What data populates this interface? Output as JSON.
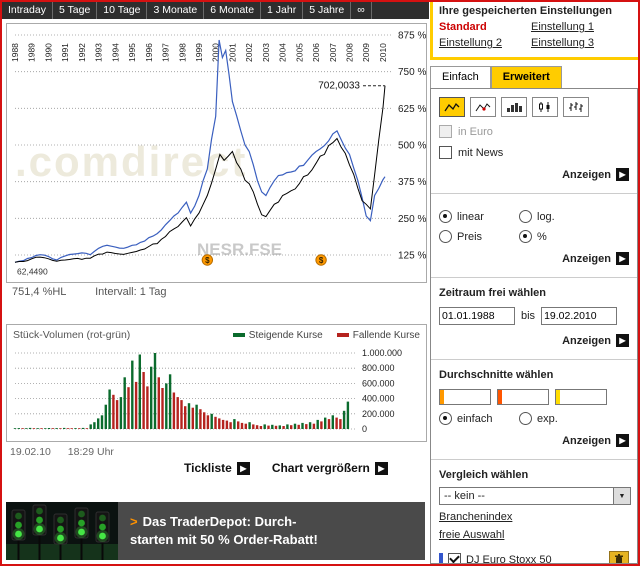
{
  "icons": {
    "arrow_right": "▶",
    "dropdown_arrow": "▼",
    "dollar": "$"
  },
  "period_tabs": {
    "items": [
      "Intraday",
      "5 Tage",
      "10 Tage",
      "3 Monate",
      "6 Monate",
      "1 Jahr",
      "5 Jahre",
      "∞"
    ]
  },
  "saved_settings": {
    "title": "Ihre gespeicherten Einstellungen",
    "standard": "Standard",
    "links": [
      "Einstellung 1",
      "Einstellung 2",
      "Einstellung 3"
    ]
  },
  "mode_tabs": {
    "simple": "Einfach",
    "advanced": "Erweitert"
  },
  "settings_panel": {
    "in_euro": "in Euro",
    "with_news": "mit News",
    "show_label": "Anzeigen",
    "scale": {
      "linear": "linear",
      "log": "log.",
      "price": "Preis",
      "percent": "%"
    },
    "timeframe": {
      "label": "Zeitraum frei wählen",
      "from": "01.01.1988",
      "between": "bis",
      "to": "19.02.2010"
    },
    "averages": {
      "label": "Durchschnitte wählen",
      "simple": "einfach",
      "exponential": "exp.",
      "colors": [
        "#ff9900",
        "#ff5500",
        "#ffdd00"
      ]
    },
    "compare": {
      "label": "Vergleich wählen",
      "selected": "-- kein --",
      "links": [
        "Branchenindex",
        "freie Auswahl"
      ],
      "active_item": "DJ Euro Stoxx 50",
      "active_color": "#3355cc"
    }
  },
  "chart": {
    "watermark": ".comdirect",
    "symbol_watermark": "NESR.FSE",
    "last_price_label": "702,0033",
    "start_price_label": "62,4490",
    "y_ticks": [
      "125 %",
      "250 %",
      "375 %",
      "500 %",
      "625 %",
      "750 %",
      "875 %"
    ],
    "footer": {
      "hl": "751,4 %HL",
      "interval": "Intervall: 1 Tag"
    }
  },
  "volume": {
    "title": "Stück-Volumen (rot-grün)",
    "legend": [
      {
        "label": "Steigende Kurse",
        "color": "#0b6b2d"
      },
      {
        "label": "Fallende Kurse",
        "color": "#b5231f"
      }
    ],
    "y_ticks": [
      "0",
      "200.000",
      "400.000",
      "600.000",
      "800.000",
      "1.000.000"
    ]
  },
  "status": {
    "date": "19.02.10",
    "time": "18:29 Uhr"
  },
  "actions": {
    "ticklist": "Tickliste",
    "enlarge": "Chart vergrößern"
  },
  "ad": {
    "arrow": ">",
    "line1": "Das TraderDepot: Durch-",
    "line2": "starten mit 50 % Order-Rabatt!"
  },
  "chart_data": [
    {
      "type": "line",
      "title": "Kursentwicklung 1988–2010 in Prozent",
      "x_range": [
        1988,
        2010.6
      ],
      "y_ticks_pct": [
        125,
        250,
        375,
        500,
        625,
        750,
        875
      ],
      "year_labels": [
        1988,
        1989,
        1990,
        1991,
        1992,
        1993,
        1994,
        1995,
        1996,
        1997,
        1998,
        1999,
        2000,
        2001,
        2002,
        2003,
        2004,
        2005,
        2006,
        2007,
        2008,
        2009,
        2010
      ],
      "last_value": 702.0033,
      "dollar_marker_years": [
        1999.5,
        2006.3
      ],
      "series": [
        {
          "name": "NESR.FSE",
          "color": "#000000",
          "points": [
            [
              1988,
              100
            ],
            [
              1988.5,
              103
            ],
            [
              1989,
              112
            ],
            [
              1989.5,
              118
            ],
            [
              1990,
              112
            ],
            [
              1990.5,
              104
            ],
            [
              1991,
              108
            ],
            [
              1991.5,
              112
            ],
            [
              1992,
              110
            ],
            [
              1992.5,
              114
            ],
            [
              1993,
              128
            ],
            [
              1993.5,
              135
            ],
            [
              1994,
              130
            ],
            [
              1994.5,
              127
            ],
            [
              1995,
              134
            ],
            [
              1995.5,
              142
            ],
            [
              1996,
              154
            ],
            [
              1996.5,
              164
            ],
            [
              1997,
              188
            ],
            [
              1997.5,
              214
            ],
            [
              1998,
              238
            ],
            [
              1998.25,
              252
            ],
            [
              1998.5,
              224
            ],
            [
              1999,
              268
            ],
            [
              1999.5,
              328
            ],
            [
              2000,
              418
            ],
            [
              2000.25,
              468
            ],
            [
              2000.5,
              448
            ],
            [
              2000.75,
              462
            ],
            [
              2001,
              478
            ],
            [
              2001.25,
              440
            ],
            [
              2001.5,
              418
            ],
            [
              2001.75,
              380
            ],
            [
              2002,
              368
            ],
            [
              2002.5,
              298
            ],
            [
              2002.75,
              262
            ],
            [
              2003,
              256
            ],
            [
              2003.5,
              298
            ],
            [
              2004,
              328
            ],
            [
              2004.5,
              344
            ],
            [
              2005,
              368
            ],
            [
              2005.5,
              398
            ],
            [
              2006,
              438
            ],
            [
              2006.5,
              468
            ],
            [
              2007,
              508
            ],
            [
              2007.25,
              522
            ],
            [
              2007.5,
              492
            ],
            [
              2008,
              432
            ],
            [
              2008.5,
              352
            ],
            [
              2008.75,
              310
            ],
            [
              2009,
              298
            ],
            [
              2009.25,
              282
            ],
            [
              2009.5,
              398
            ],
            [
              2009.75,
              518
            ],
            [
              2010,
              628
            ],
            [
              2010.12,
              702
            ]
          ]
        },
        {
          "name": "DJ Euro Stoxx 50",
          "color": "#3a5fbf",
          "points": [
            [
              1988,
              100
            ],
            [
              1988.5,
              106
            ],
            [
              1989,
              116
            ],
            [
              1989.5,
              126
            ],
            [
              1990,
              120
            ],
            [
              1990.5,
              108
            ],
            [
              1991,
              122
            ],
            [
              1991.5,
              128
            ],
            [
              1992,
              132
            ],
            [
              1992.5,
              126
            ],
            [
              1993,
              148
            ],
            [
              1993.5,
              158
            ],
            [
              1994,
              152
            ],
            [
              1994.5,
              148
            ],
            [
              1995,
              158
            ],
            [
              1995.5,
              168
            ],
            [
              1996,
              184
            ],
            [
              1996.5,
              198
            ],
            [
              1997,
              228
            ],
            [
              1997.5,
              258
            ],
            [
              1998,
              288
            ],
            [
              1998.25,
              305
            ],
            [
              1998.5,
              268
            ],
            [
              1999,
              328
            ],
            [
              1999.5,
              418
            ],
            [
              2000,
              598
            ],
            [
              2000.2,
              858
            ],
            [
              2000.4,
              798
            ],
            [
              2000.6,
              822
            ],
            [
              2001,
              648
            ],
            [
              2001.25,
              600
            ],
            [
              2001.5,
              548
            ],
            [
              2001.75,
              500
            ],
            [
              2002,
              478
            ],
            [
              2002.5,
              378
            ],
            [
              2002.75,
              340
            ],
            [
              2003,
              328
            ],
            [
              2003.5,
              378
            ],
            [
              2004,
              398
            ],
            [
              2004.5,
              408
            ],
            [
              2005,
              428
            ],
            [
              2005.5,
              448
            ],
            [
              2006,
              478
            ],
            [
              2006.5,
              498
            ],
            [
              2007,
              538
            ],
            [
              2007.25,
              548
            ],
            [
              2007.5,
              518
            ],
            [
              2008,
              468
            ],
            [
              2008.5,
              378
            ],
            [
              2008.75,
              320
            ],
            [
              2009,
              258
            ],
            [
              2009.25,
              242
            ],
            [
              2009.5,
              328
            ],
            [
              2009.75,
              352
            ],
            [
              2010,
              382
            ],
            [
              2010.12,
              392
            ]
          ]
        }
      ]
    },
    {
      "type": "bar",
      "title": "Stück-Volumen",
      "x_start": 1988,
      "x_step_years": 0.25,
      "y_ticks": [
        0,
        200000,
        400000,
        600000,
        800000,
        1000000
      ],
      "up_color": "#0b6b2d",
      "down_color": "#b5231f",
      "color_rule": "green if value >= previous else red",
      "values_thousands": [
        8,
        12,
        6,
        10,
        14,
        9,
        11,
        7,
        10,
        13,
        8,
        12,
        9,
        15,
        11,
        8,
        12,
        10,
        14,
        9,
        60,
        90,
        140,
        180,
        320,
        520,
        450,
        380,
        420,
        680,
        550,
        900,
        620,
        980,
        750,
        560,
        820,
        1000,
        680,
        540,
        600,
        720,
        480,
        420,
        380,
        300,
        340,
        280,
        320,
        260,
        220,
        180,
        200,
        160,
        140,
        120,
        110,
        90,
        130,
        100,
        80,
        70,
        90,
        60,
        50,
        40,
        60,
        45,
        55,
        42,
        48,
        40,
        60,
        50,
        70,
        55,
        80,
        65,
        90,
        70,
        120,
        100,
        150,
        130,
        180,
        150,
        130,
        240,
        360
      ]
    }
  ]
}
